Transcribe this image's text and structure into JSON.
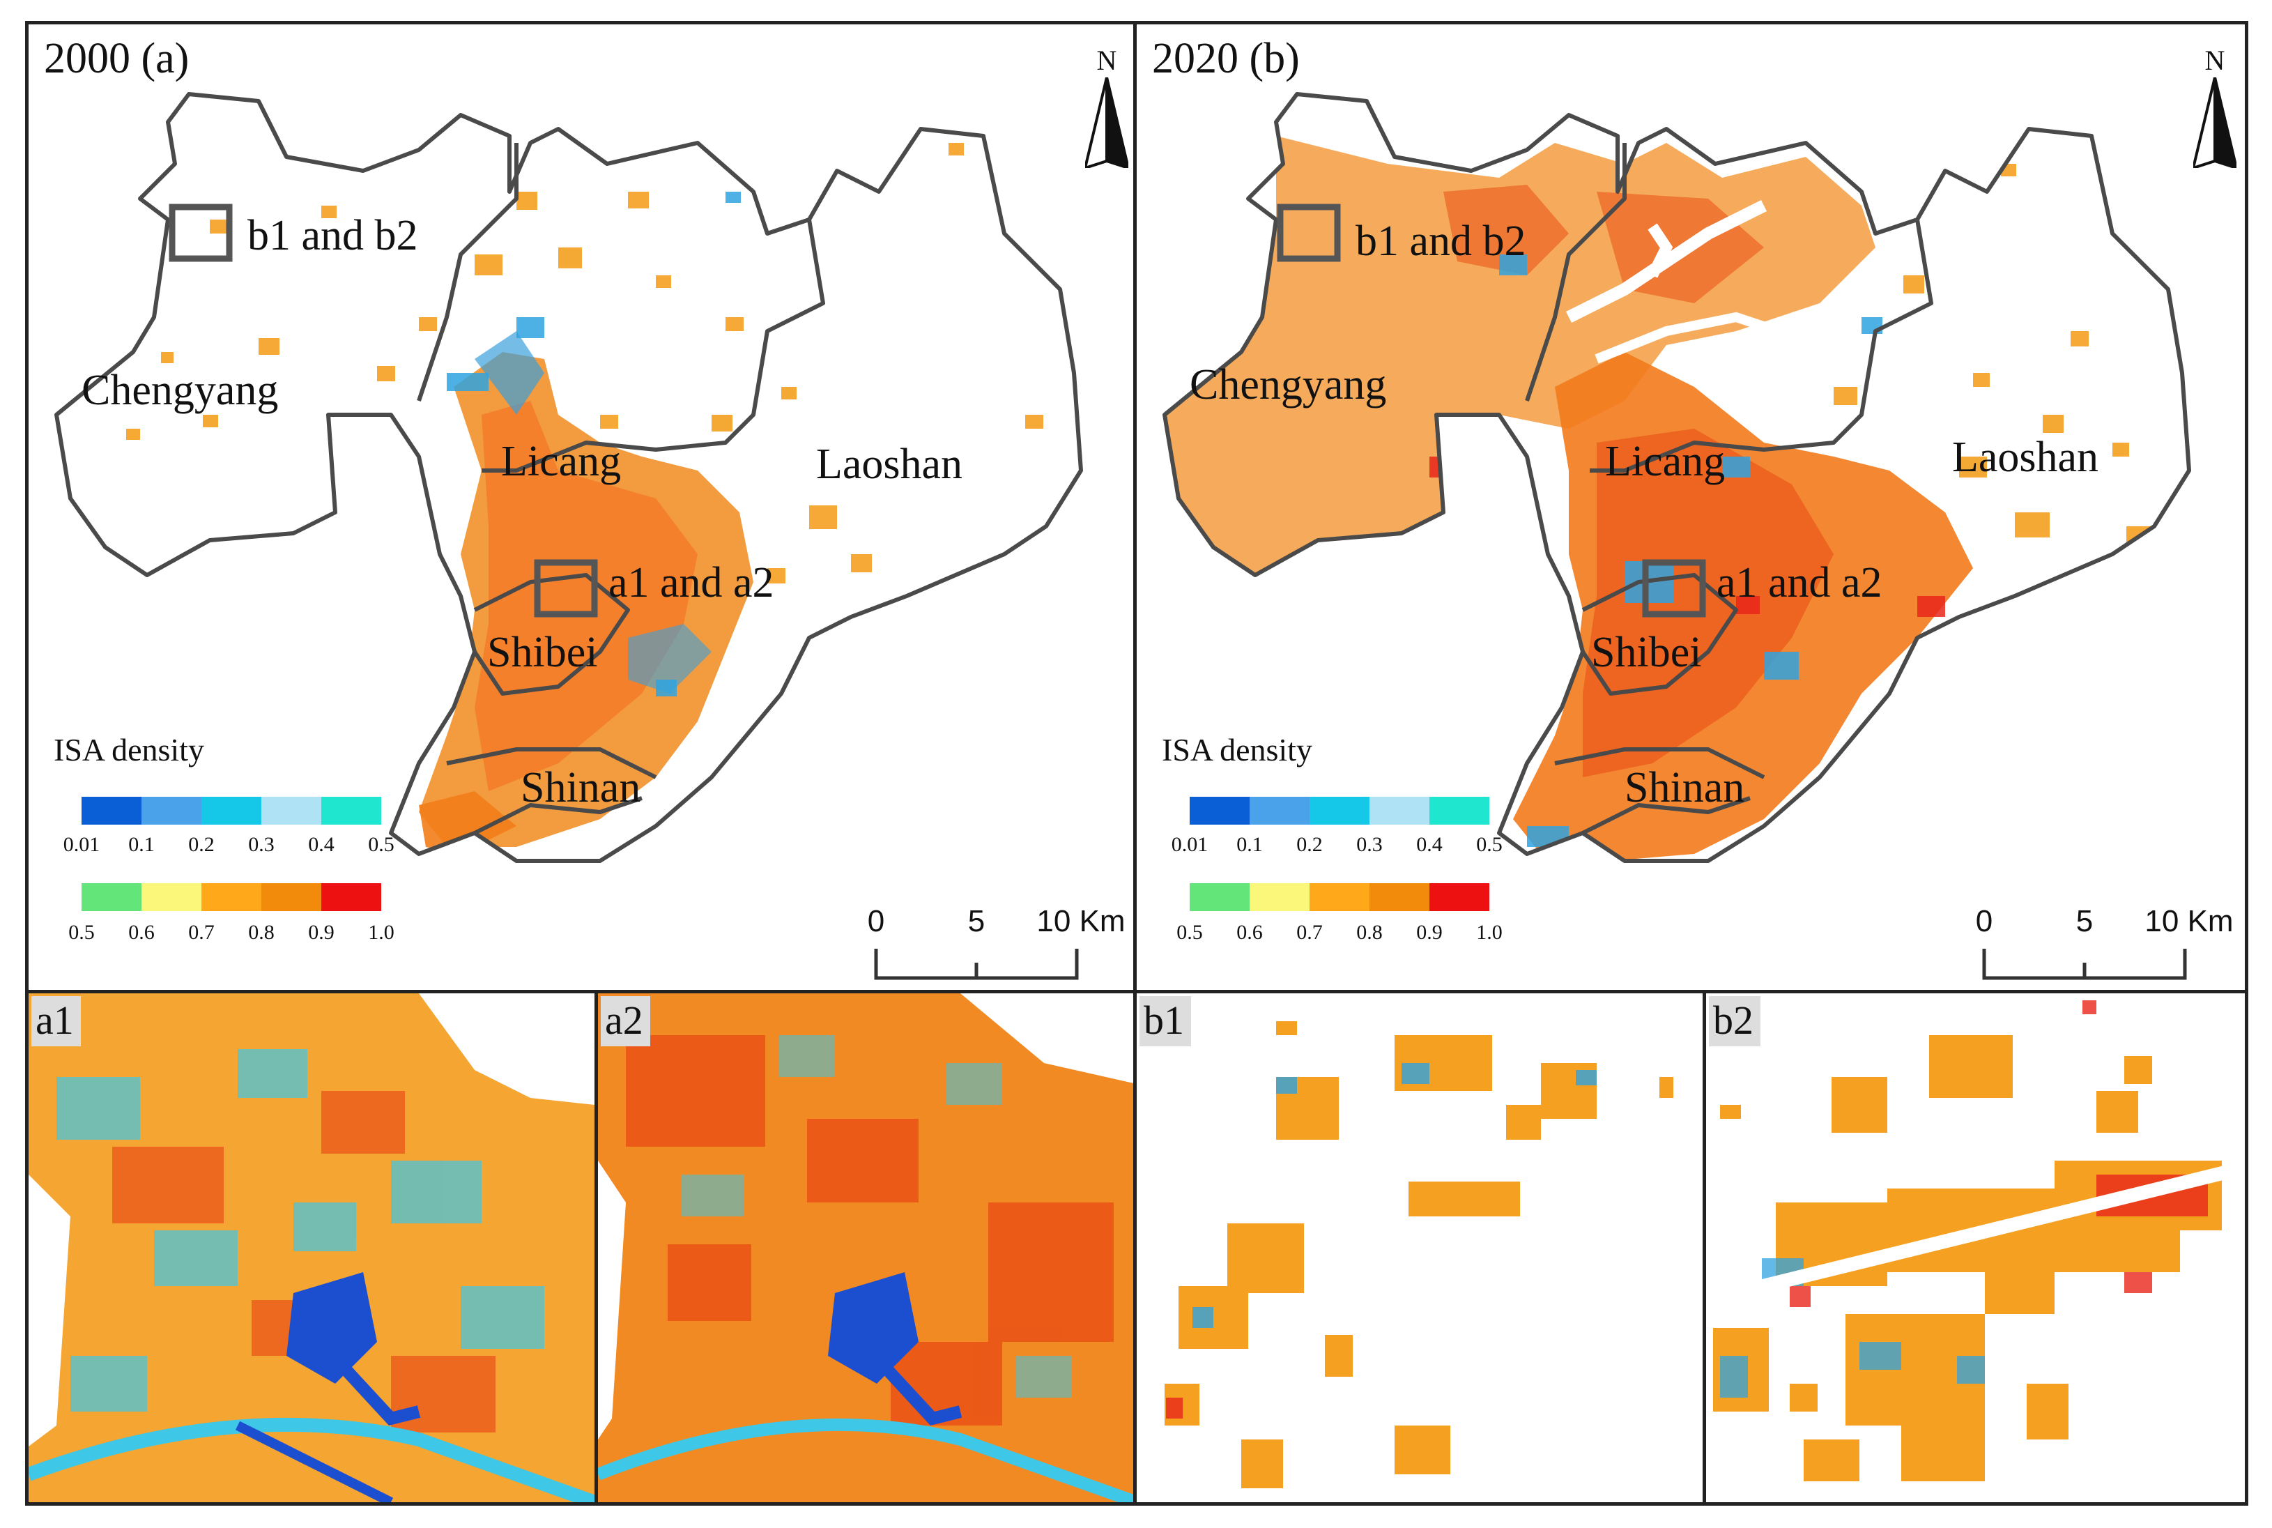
{
  "colors": {
    "frame": "#222222",
    "boundary": "#4a4a4a",
    "urban_high": "#e8501a",
    "urban_mid": "#f5a623",
    "urban_low": "#2fa3e0",
    "water": "#1c4fd0"
  },
  "panels": [
    {
      "id": "a",
      "title": "2000 (a)",
      "north_label": "N",
      "districts": [
        "Chengyang",
        "Licang",
        "Laoshan",
        "Shibei",
        "Shinan"
      ],
      "box_labels": [
        "b1 and b2",
        "a1 and a2"
      ],
      "density_level": "sparse"
    },
    {
      "id": "b",
      "title": "2020 (b)",
      "north_label": "N",
      "districts": [
        "Chengyang",
        "Licang",
        "Laoshan",
        "Shibei",
        "Shinan"
      ],
      "box_labels": [
        "b1 and b2",
        "a1 and a2"
      ],
      "density_level": "dense"
    }
  ],
  "legend": {
    "title": "ISA density",
    "low_colors": [
      "#0a5fd6",
      "#4aa3ea",
      "#16c8e8",
      "#aee2f4",
      "#1ee6cf"
    ],
    "low_ticks": [
      "0.01",
      "0.1",
      "0.2",
      "0.3",
      "0.4",
      "0.5"
    ],
    "high_colors": [
      "#64e57a",
      "#fbf77a",
      "#ffa81a",
      "#f28a0c",
      "#ee1111"
    ],
    "high_ticks": [
      "0.5",
      "0.6",
      "0.7",
      "0.8",
      "0.9",
      "1.0"
    ]
  },
  "scalebar": {
    "ticks": [
      "0",
      "5",
      "10 Km"
    ]
  },
  "insets": [
    {
      "label": "a1",
      "kind": "urban"
    },
    {
      "label": "a2",
      "kind": "urban"
    },
    {
      "label": "b1",
      "kind": "patches"
    },
    {
      "label": "b2",
      "kind": "patches"
    }
  ]
}
